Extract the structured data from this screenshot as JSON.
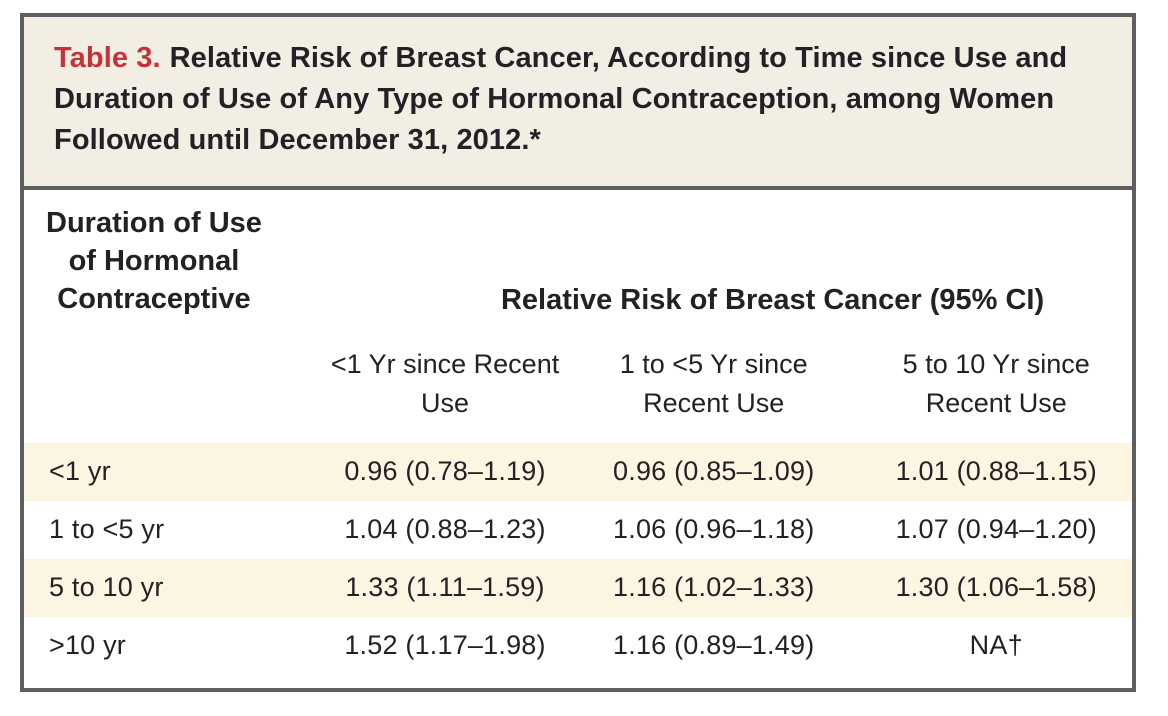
{
  "title": {
    "label": "Table 3.",
    "text": "Relative Risk of Breast Cancer, According to Time since Use and Duration of Use of Any Type of Hormonal Contraception, among Women Followed until December 31, 2012.*"
  },
  "table": {
    "stub_header": "Duration of Use\nof Hormonal\nContraceptive",
    "group_header": "Relative Risk of Breast Cancer (95% CI)",
    "column_headers": [
      "<1 Yr since Recent\nUse",
      "1 to <5 Yr since\nRecent Use",
      "5 to 10 Yr since\nRecent Use"
    ],
    "rows": [
      {
        "label": "<1 yr",
        "cells": [
          "0.96 (0.78–1.19)",
          "0.96 (0.85–1.09)",
          "1.01 (0.88–1.15)"
        ]
      },
      {
        "label": "1 to <5 yr",
        "cells": [
          "1.04 (0.88–1.23)",
          "1.06 (0.96–1.18)",
          "1.07 (0.94–1.20)"
        ]
      },
      {
        "label": "5 to 10 yr",
        "cells": [
          "1.33 (1.11–1.59)",
          "1.16 (1.02–1.33)",
          "1.30 (1.06–1.58)"
        ]
      },
      {
        "label": ">10 yr",
        "cells": [
          "1.52 (1.17–1.98)",
          "1.16 (0.89–1.49)",
          "NA†"
        ]
      }
    ],
    "footnote_markers": {
      "title": "*",
      "na_cell": "†"
    }
  },
  "colors": {
    "frame_border": "#5e5f62",
    "caption_background": "#f3eee4",
    "caption_label_red": "#c5333a",
    "row_band_cream": "#fbf5e1",
    "text": "#232125",
    "page_background": "#ffffff"
  }
}
